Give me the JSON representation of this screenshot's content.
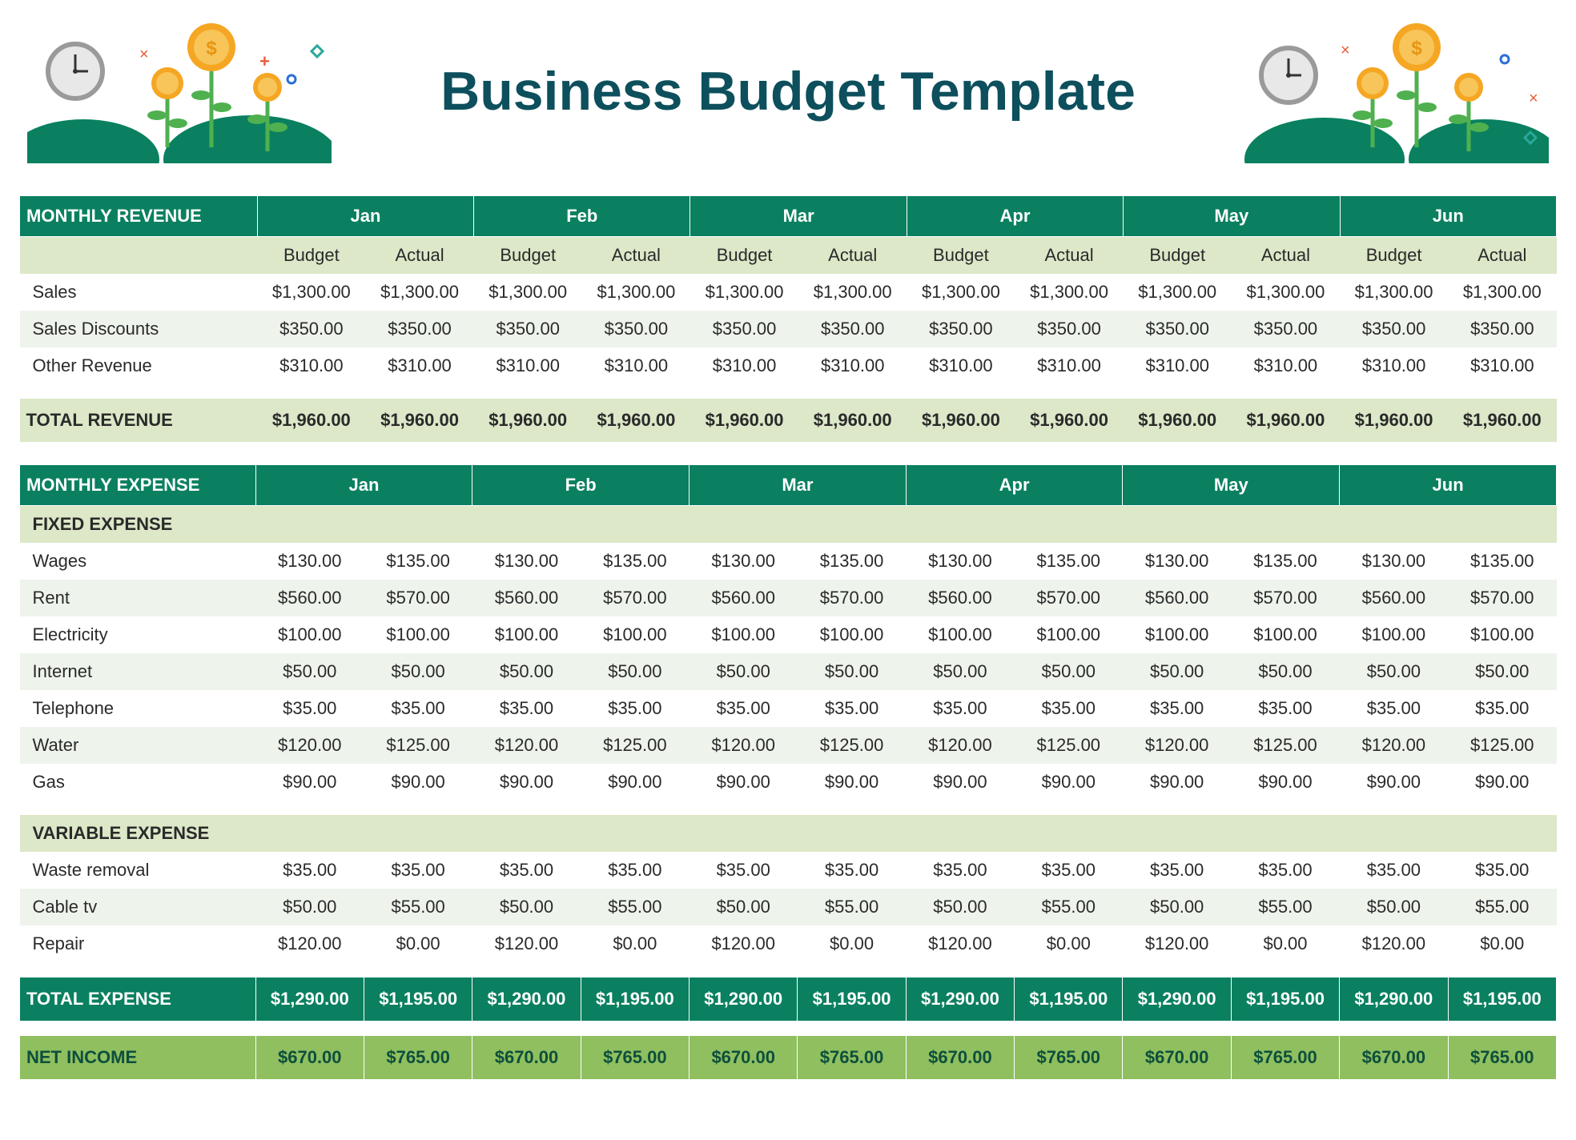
{
  "title": "Business Budget Template",
  "months": [
    "Jan",
    "Feb",
    "Mar",
    "Apr",
    "May",
    "Jun"
  ],
  "subcols": [
    "Budget",
    "Actual"
  ],
  "colors": {
    "header_bg": "#0a8060",
    "header_fg": "#ffffff",
    "subheader_bg": "#dce8c8",
    "row_alt_bg": "#eef4ec",
    "total_expense_bg": "#0a8060",
    "net_income_bg": "#8fbf5f",
    "net_income_fg": "#0d4f3c",
    "title_color": "#0d4f5c",
    "text_color": "#2a2a2a",
    "decoration_hill": "#0a8060",
    "decoration_stem": "#4fb04f",
    "decoration_coin": "#f5a623",
    "decoration_coin_inner": "#f7c55a",
    "decoration_clock_face": "#e8e8e8",
    "decoration_clock_ring": "#9a9a9a",
    "decoration_accent_red": "#e85d3d",
    "decoration_accent_teal": "#2aa89a",
    "decoration_accent_blue": "#2a6fd6"
  },
  "revenue": {
    "section_label": "MONTHLY REVENUE",
    "rows": [
      {
        "label": "Sales",
        "values": [
          "$1,300.00",
          "$1,300.00",
          "$1,300.00",
          "$1,300.00",
          "$1,300.00",
          "$1,300.00",
          "$1,300.00",
          "$1,300.00",
          "$1,300.00",
          "$1,300.00",
          "$1,300.00",
          "$1,300.00"
        ]
      },
      {
        "label": "Sales Discounts",
        "values": [
          "$350.00",
          "$350.00",
          "$350.00",
          "$350.00",
          "$350.00",
          "$350.00",
          "$350.00",
          "$350.00",
          "$350.00",
          "$350.00",
          "$350.00",
          "$350.00"
        ]
      },
      {
        "label": "Other Revenue",
        "values": [
          "$310.00",
          "$310.00",
          "$310.00",
          "$310.00",
          "$310.00",
          "$310.00",
          "$310.00",
          "$310.00",
          "$310.00",
          "$310.00",
          "$310.00",
          "$310.00"
        ]
      }
    ],
    "total_label": "TOTAL REVENUE",
    "total_values": [
      "$1,960.00",
      "$1,960.00",
      "$1,960.00",
      "$1,960.00",
      "$1,960.00",
      "$1,960.00",
      "$1,960.00",
      "$1,960.00",
      "$1,960.00",
      "$1,960.00",
      "$1,960.00",
      "$1,960.00"
    ]
  },
  "expense": {
    "section_label": "MONTHLY EXPENSE",
    "fixed_label": "FIXED EXPENSE",
    "fixed_rows": [
      {
        "label": "Wages",
        "values": [
          "$130.00",
          "$135.00",
          "$130.00",
          "$135.00",
          "$130.00",
          "$135.00",
          "$130.00",
          "$135.00",
          "$130.00",
          "$135.00",
          "$130.00",
          "$135.00"
        ]
      },
      {
        "label": "Rent",
        "values": [
          "$560.00",
          "$570.00",
          "$560.00",
          "$570.00",
          "$560.00",
          "$570.00",
          "$560.00",
          "$570.00",
          "$560.00",
          "$570.00",
          "$560.00",
          "$570.00"
        ]
      },
      {
        "label": "Electricity",
        "values": [
          "$100.00",
          "$100.00",
          "$100.00",
          "$100.00",
          "$100.00",
          "$100.00",
          "$100.00",
          "$100.00",
          "$100.00",
          "$100.00",
          "$100.00",
          "$100.00"
        ]
      },
      {
        "label": "Internet",
        "values": [
          "$50.00",
          "$50.00",
          "$50.00",
          "$50.00",
          "$50.00",
          "$50.00",
          "$50.00",
          "$50.00",
          "$50.00",
          "$50.00",
          "$50.00",
          "$50.00"
        ]
      },
      {
        "label": "Telephone",
        "values": [
          "$35.00",
          "$35.00",
          "$35.00",
          "$35.00",
          "$35.00",
          "$35.00",
          "$35.00",
          "$35.00",
          "$35.00",
          "$35.00",
          "$35.00",
          "$35.00"
        ]
      },
      {
        "label": "Water",
        "values": [
          "$120.00",
          "$125.00",
          "$120.00",
          "$125.00",
          "$120.00",
          "$125.00",
          "$120.00",
          "$125.00",
          "$120.00",
          "$125.00",
          "$120.00",
          "$125.00"
        ]
      },
      {
        "label": "Gas",
        "values": [
          "$90.00",
          "$90.00",
          "$90.00",
          "$90.00",
          "$90.00",
          "$90.00",
          "$90.00",
          "$90.00",
          "$90.00",
          "$90.00",
          "$90.00",
          "$90.00"
        ]
      }
    ],
    "variable_label": "VARIABLE EXPENSE",
    "variable_rows": [
      {
        "label": "Waste removal",
        "values": [
          "$35.00",
          "$35.00",
          "$35.00",
          "$35.00",
          "$35.00",
          "$35.00",
          "$35.00",
          "$35.00",
          "$35.00",
          "$35.00",
          "$35.00",
          "$35.00"
        ]
      },
      {
        "label": "Cable tv",
        "values": [
          "$50.00",
          "$55.00",
          "$50.00",
          "$55.00",
          "$50.00",
          "$55.00",
          "$50.00",
          "$55.00",
          "$50.00",
          "$55.00",
          "$50.00",
          "$55.00"
        ]
      },
      {
        "label": "Repair",
        "values": [
          "$120.00",
          "$0.00",
          "$120.00",
          "$0.00",
          "$120.00",
          "$0.00",
          "$120.00",
          "$0.00",
          "$120.00",
          "$0.00",
          "$120.00",
          "$0.00"
        ]
      }
    ],
    "total_label": "TOTAL EXPENSE",
    "total_values": [
      "$1,290.00",
      "$1,195.00",
      "$1,290.00",
      "$1,195.00",
      "$1,290.00",
      "$1,195.00",
      "$1,290.00",
      "$1,195.00",
      "$1,290.00",
      "$1,195.00",
      "$1,290.00",
      "$1,195.00"
    ]
  },
  "net_income": {
    "label": "NET INCOME",
    "values": [
      "$670.00",
      "$765.00",
      "$670.00",
      "$765.00",
      "$670.00",
      "$765.00",
      "$670.00",
      "$765.00",
      "$670.00",
      "$765.00",
      "$670.00",
      "$765.00"
    ]
  }
}
